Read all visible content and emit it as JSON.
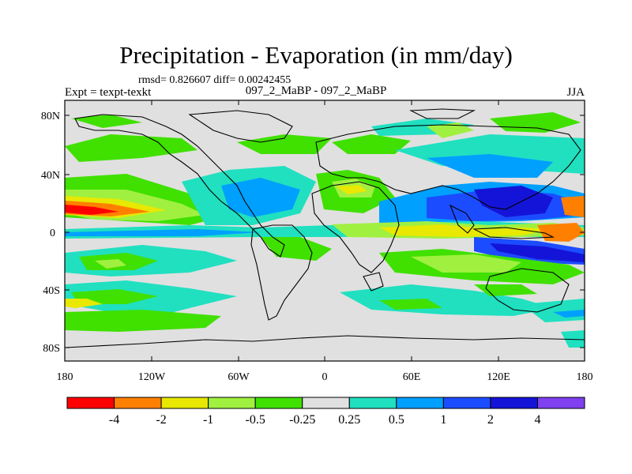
{
  "title": "Precipitation - Evaporation (in mm/day)",
  "stats_line": "rmsd= 0.826607 diff= 0.00242455",
  "left_label": "Expt = texpt-texkt",
  "center_label": "097_2_MaBP - 097_2_MaBP",
  "right_label": "JJA",
  "map": {
    "lat_ticks": [
      "80N",
      "40N",
      "0",
      "40S",
      "80S"
    ],
    "lon_ticks": [
      "180",
      "120W",
      "60W",
      "0",
      "60E",
      "120E",
      "180"
    ]
  },
  "colorbar": {
    "colors": [
      "#ff0000",
      "#ff8000",
      "#e8e800",
      "#a0f040",
      "#40e000",
      "#e0e0e0",
      "#20e0c0",
      "#00a0ff",
      "#1c4cff",
      "#1414d8",
      "#8040f0"
    ],
    "labels": [
      "-4",
      "-2",
      "-1",
      "-0.5",
      "-0.25",
      "0.25",
      "0.5",
      "1",
      "2",
      "4"
    ]
  }
}
